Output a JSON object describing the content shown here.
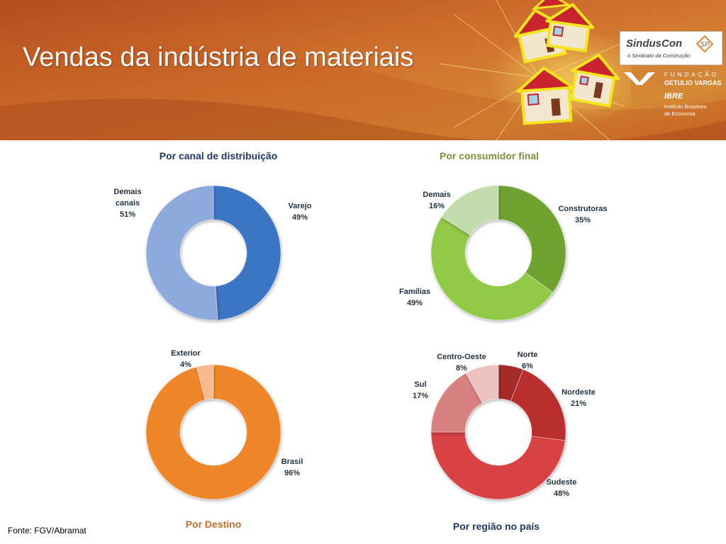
{
  "slide": {
    "title": "Vendas da indústria de materiais",
    "source": "Fonte: FGV/Abramat"
  },
  "logos": {
    "sinduscon_name": "SindusCon",
    "sinduscon_sp": "SP",
    "sinduscon_tagline": "o Sindicato da Construção",
    "fgv_fundacao": "FUNDAÇÃO",
    "fgv_getulio": "GETULIO VARGAS",
    "ibre": "IBRE",
    "ibre_line1": "Instituto Brasileiro",
    "ibre_line2": "de Economia"
  },
  "colors": {
    "banner": "#c8622a",
    "title_blue": "#1f3864",
    "title_green": "#77933c",
    "title_orange": "#c0712a",
    "title_navy": "#1f3864"
  },
  "chart_data": [
    {
      "type": "donut",
      "title": "Por canal de distribuição",
      "series": [
        {
          "label": "Varejo",
          "value": 49,
          "value_label": "49%",
          "color": "#3a75c4"
        },
        {
          "label": "Demais canais",
          "value": 51,
          "value_label": "51%",
          "color": "#8eaadc"
        }
      ]
    },
    {
      "type": "donut",
      "title": "Por consumidor final",
      "series": [
        {
          "label": "Construtoras",
          "value": 35,
          "value_label": "35%",
          "color": "#6fa232"
        },
        {
          "label": "Famílias",
          "value": 49,
          "value_label": "49%",
          "color": "#92c947"
        },
        {
          "label": "Demais",
          "value": 16,
          "value_label": "16%",
          "color": "#c3dcae"
        }
      ]
    },
    {
      "type": "donut",
      "title": "Por Destino",
      "series": [
        {
          "label": "Brasil",
          "value": 96,
          "value_label": "96%",
          "color": "#f0862a"
        },
        {
          "label": "Exterior",
          "value": 4,
          "value_label": "4%",
          "color": "#f5b98c"
        }
      ]
    },
    {
      "type": "donut",
      "title": "Por região no país",
      "series": [
        {
          "label": "Norte",
          "value": 6,
          "value_label": "6%",
          "color": "#a52a2a"
        },
        {
          "label": "Nordeste",
          "value": 21,
          "value_label": "21%",
          "color": "#bb2e2f"
        },
        {
          "label": "Sudeste",
          "value": 48,
          "value_label": "48%",
          "color": "#d94343"
        },
        {
          "label": "Sul",
          "value": 17,
          "value_label": "17%",
          "color": "#d98080"
        },
        {
          "label": "Centro-Oeste",
          "value": 8,
          "value_label": "8%",
          "color": "#ecc1c1"
        }
      ]
    }
  ]
}
